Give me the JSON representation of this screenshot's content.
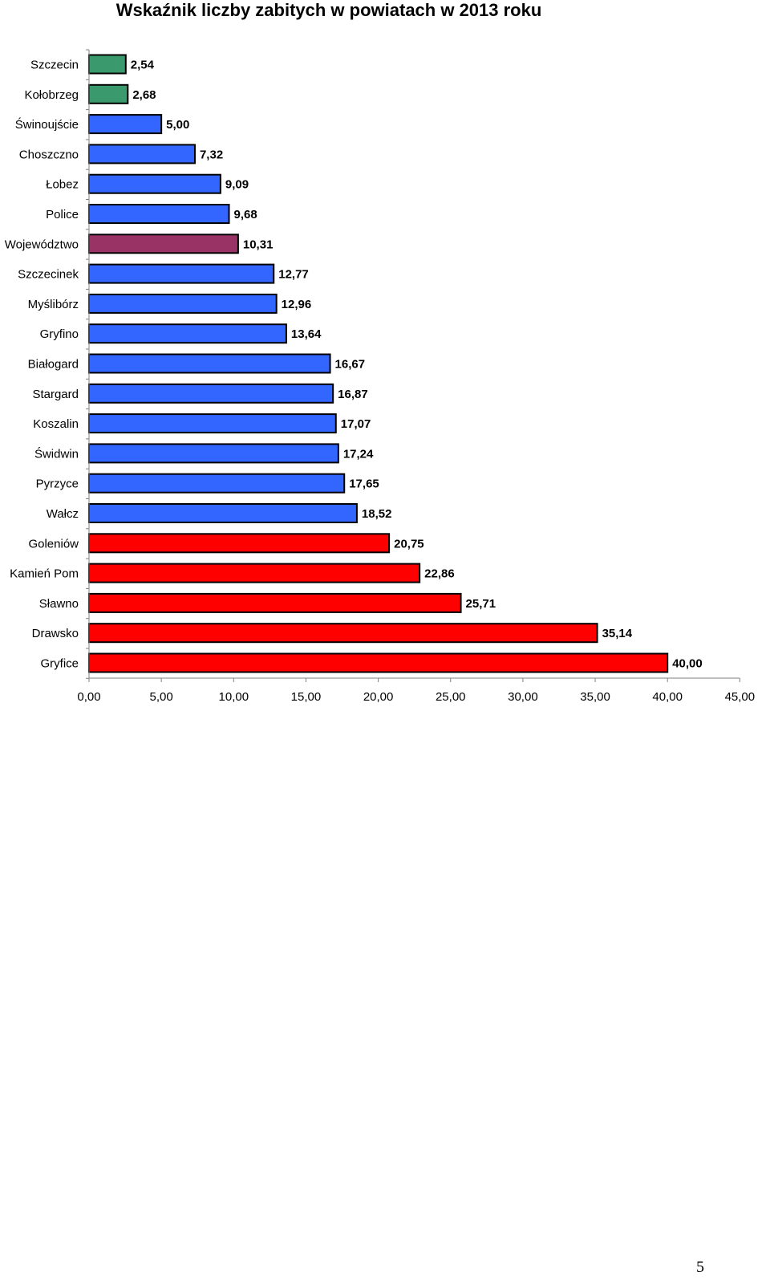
{
  "chart_data": {
    "type": "bar",
    "orientation": "horizontal",
    "title": "Wskaźnik liczby zabitych w powiatach w 2013 roku",
    "xlabel": "",
    "ylabel": "",
    "xlim": [
      0,
      45
    ],
    "x_ticks": [
      "0,00",
      "5,00",
      "10,00",
      "15,00",
      "20,00",
      "25,00",
      "30,00",
      "35,00",
      "40,00",
      "45,00"
    ],
    "grid": false,
    "categories": [
      "Szczecin",
      "Kołobrzeg",
      "Świnoujście",
      "Choszczno",
      "Łobez",
      "Police",
      "Województwo",
      "Szczecinek",
      "Myślibórz",
      "Gryfino",
      "Białogard",
      "Stargard",
      "Koszalin",
      "Świdwin",
      "Pyrzyce",
      "Wałcz",
      "Goleniów",
      "Kamień Pom",
      "Sławno",
      "Drawsko",
      "Gryfice"
    ],
    "values": [
      2.54,
      2.68,
      5.0,
      7.32,
      9.09,
      9.68,
      10.31,
      12.77,
      12.96,
      13.64,
      16.67,
      16.87,
      17.07,
      17.24,
      17.65,
      18.52,
      20.75,
      22.86,
      25.71,
      35.14,
      40.0
    ],
    "data_labels": [
      "2,54",
      "2,68",
      "5,00",
      "7,32",
      "9,09",
      "9,68",
      "10,31",
      "12,77",
      "12,96",
      "13,64",
      "16,67",
      "16,87",
      "17,07",
      "17,24",
      "17,65",
      "18,52",
      "20,75",
      "22,86",
      "25,71",
      "35,14",
      "40,00"
    ],
    "bar_colors": [
      "#3a9a6e",
      "#3a9a6e",
      "#3366ff",
      "#3366ff",
      "#3366ff",
      "#3366ff",
      "#993366",
      "#3366ff",
      "#3366ff",
      "#3366ff",
      "#3366ff",
      "#3366ff",
      "#3366ff",
      "#3366ff",
      "#3366ff",
      "#3366ff",
      "#ff0000",
      "#ff0000",
      "#ff0000",
      "#ff0000",
      "#ff0000"
    ]
  },
  "page": {
    "number": "5"
  }
}
